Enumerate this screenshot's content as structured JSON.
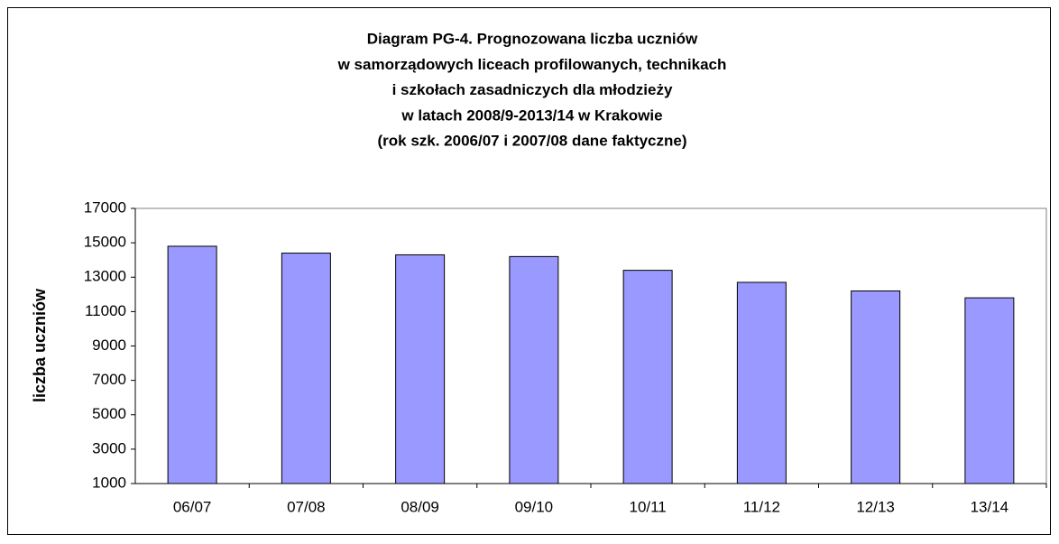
{
  "chart_data": {
    "type": "bar",
    "title": [
      "Diagram PG-4. Prognozowana liczba uczniów",
      "w samorządowych liceach profilowanych, technikach",
      "i szkołach zasadniczych dla młodzieży",
      "w latach 2008/9-2013/14 w Krakowie",
      "(rok szk. 2006/07 i 2007/08  dane faktyczne)"
    ],
    "y_label": "liczba uczniów",
    "categories": [
      "06/07",
      "07/08",
      "08/09",
      "09/10",
      "10/11",
      "11/12",
      "12/13",
      "13/14"
    ],
    "values": [
      14800,
      14400,
      14300,
      14200,
      13400,
      12700,
      12200,
      11800
    ],
    "color": "#9999ff",
    "ylim": [
      1000,
      17000
    ],
    "yticks": [
      1000,
      3000,
      5000,
      7000,
      9000,
      11000,
      13000,
      15000,
      17000
    ],
    "grid": false
  }
}
